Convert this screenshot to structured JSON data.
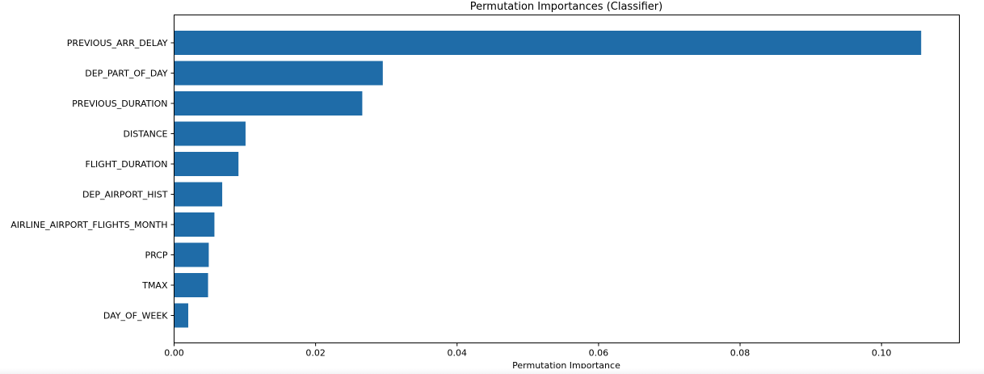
{
  "chart_data": {
    "type": "bar",
    "orientation": "horizontal",
    "title": "Permutation Importances (Classifier)",
    "xlabel": "Permutation Importance",
    "ylabel": "",
    "xlim": [
      0,
      0.111
    ],
    "xticks": [
      0.0,
      0.02,
      0.04,
      0.06,
      0.08,
      0.1
    ],
    "xtick_labels": [
      "0.00",
      "0.02",
      "0.04",
      "0.06",
      "0.08",
      "0.10"
    ],
    "categories": [
      "PREVIOUS_ARR_DELAY",
      "DEP_PART_OF_DAY",
      "PREVIOUS_DURATION",
      "DISTANCE",
      "FLIGHT_DURATION",
      "DEP_AIRPORT_HIST",
      "AIRLINE_AIRPORT_FLIGHTS_MONTH",
      "PRCP",
      "TMAX",
      "DAY_OF_WEEK"
    ],
    "values": [
      0.1056,
      0.0295,
      0.0266,
      0.0101,
      0.0091,
      0.0068,
      0.0057,
      0.0049,
      0.0048,
      0.002
    ],
    "bar_color": "#1f6ca8",
    "grid": false,
    "legend": "none"
  }
}
